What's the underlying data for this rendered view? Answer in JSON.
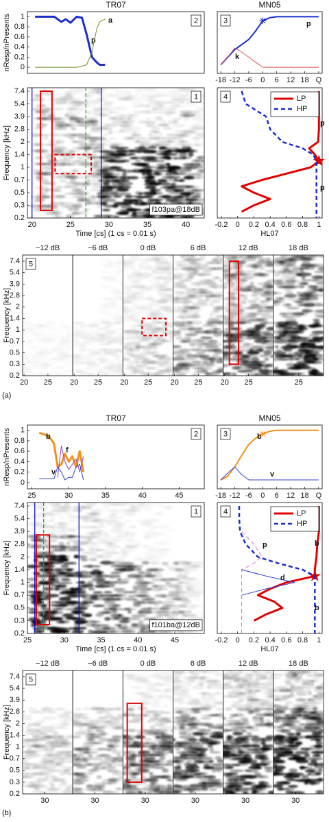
{
  "figure_labels": [
    "(a)",
    "(b)"
  ],
  "chart_data": [
    {
      "type": "line",
      "title": "TR07",
      "ylabel": "nResp/nPresents",
      "panel_label": "2",
      "x": [
        20.4,
        21,
        22,
        22.9,
        23.8,
        24.4,
        25,
        25.8,
        26.5,
        27.1,
        27.8,
        28.4,
        28.8,
        29.5
      ],
      "xlim": [
        19.4,
        42.4
      ],
      "ylim": [
        -0.12,
        1.1
      ],
      "yticks": [
        0,
        0.2,
        0.4,
        0.6,
        0.8,
        1
      ],
      "series": [
        {
          "name": "p",
          "color": "#1a2ecc",
          "width": 3,
          "values": [
            1,
            1,
            1,
            1,
            0.9,
            0.95,
            0.88,
            1,
            0.98,
            0.65,
            0.2,
            0.1,
            0.05,
            0.05
          ]
        },
        {
          "name": "a",
          "color": "#6b8e23",
          "width": 1,
          "values": [
            0,
            0,
            0,
            0,
            0,
            0,
            0,
            0,
            0.02,
            0.05,
            0.3,
            0.75,
            0.9,
            0.95
          ]
        }
      ]
    },
    {
      "type": "line",
      "title": "MN05",
      "panel_label": "3",
      "x": [
        -18,
        -15,
        -12,
        -9,
        -6,
        -3,
        0,
        3,
        6,
        12,
        18,
        24
      ],
      "xlim": [
        -19.5,
        25.5
      ],
      "xticks": [
        -18,
        -12,
        -6,
        0,
        6,
        12,
        18,
        {
          "value": 24,
          "label": "Q"
        }
      ],
      "ylim": [
        -0.12,
        1.1
      ],
      "series": [
        {
          "name": "p",
          "color": "#1a2ecc",
          "width": 2,
          "marker": "asterisk",
          "marker_at": 0,
          "values": [
            0.05,
            0.2,
            0.35,
            0.45,
            0.55,
            0.72,
            0.92,
            0.98,
            1,
            1,
            1,
            1
          ]
        },
        {
          "name": "k",
          "color": "#e05050",
          "width": 1,
          "values": [
            0.05,
            0.2,
            0.38,
            0.3,
            0.2,
            0.1,
            0,
            0,
            0,
            0,
            0,
            0
          ]
        }
      ]
    },
    {
      "type": "spectrogram",
      "panel_label": "1",
      "xlabel": "Time [cs] (1 cs = 0.01 s)",
      "ylabel": "Frequency [kHz]",
      "annotation": "f103pa@18dB",
      "xlim": [
        19.4,
        42.4
      ],
      "xticks": [
        20,
        25,
        30,
        35,
        40
      ],
      "ylim": [
        0.2,
        7.4
      ],
      "yticks": [
        0.2,
        0.3,
        0.5,
        0.7,
        1,
        1.4,
        2,
        2.8,
        3.9,
        5.4,
        7.4
      ],
      "vlines": [
        {
          "x": 20,
          "color": "#0000cc"
        },
        {
          "x": 29,
          "color": "#0000cc"
        },
        {
          "x": 27,
          "color": "#2a9d2a",
          "dash": true
        }
      ],
      "boxes": [
        {
          "x": [
            21.1,
            22.6
          ],
          "y": [
            0.26,
            7.4
          ],
          "color": "#e00000"
        },
        {
          "x": [
            23,
            27.7
          ],
          "y": [
            0.85,
            1.4
          ],
          "color": "#e00000",
          "dash": true
        }
      ]
    },
    {
      "type": "profile",
      "panel_label": "4",
      "xlabel": "HL07",
      "legend": "top-right",
      "annotations": [
        "p",
        "p"
      ],
      "y": [
        7.4,
        5.4,
        3.9,
        2.8,
        2,
        1.7,
        1.4,
        1.2,
        1,
        0.85,
        0.7,
        0.6,
        0.5,
        0.4,
        0.3,
        0.25,
        0.2
      ],
      "xlim": [
        -0.25,
        1.04
      ],
      "xticks": [
        -0.2,
        0,
        0.2,
        0.4,
        0.6,
        0.8,
        1
      ],
      "series": [
        {
          "name": "LP",
          "color": "#e00000",
          "width": 3,
          "marker": "star",
          "marker_at": 1.2,
          "values": [
            1,
            1,
            1,
            1,
            0.99,
            0.88,
            0.95,
            1,
            0.9,
            0.6,
            0.3,
            0.05,
            0.2,
            0.4,
            0.2,
            0.05,
            null
          ]
        },
        {
          "name": "HP",
          "color": "#1a2ecc",
          "width": 2.5,
          "dash": true,
          "values": [
            0.05,
            0.1,
            0.35,
            0.4,
            0.55,
            0.8,
            0.93,
            0.97,
            0.97,
            0.97,
            0.97,
            0.97,
            0.97,
            0.97,
            0.97,
            0.97,
            0.97
          ]
        }
      ]
    },
    {
      "type": "spectrogram-strip",
      "panel_label": "5",
      "ylabel": "Frequency [kHz]",
      "xlim": [
        19.7,
        30.2
      ],
      "ylim": [
        0.2,
        7.4
      ],
      "yticks": [
        0.2,
        0.3,
        0.5,
        0.7,
        1,
        1.4,
        2,
        2.8,
        3.9,
        5.4,
        7.4
      ],
      "panels": [
        {
          "title": "−12 dB",
          "xticks": [
            20,
            25
          ]
        },
        {
          "title": "−6 dB",
          "xticks": [
            20,
            25
          ]
        },
        {
          "title": "0 dB",
          "xticks": [
            20,
            25
          ],
          "boxes": [
            {
              "x": [
                23.7,
                28.7
              ],
              "y": [
                0.85,
                1.4
              ],
              "color": "#e00000",
              "dash": true
            }
          ]
        },
        {
          "title": "6 dB",
          "xticks": [
            20,
            25
          ]
        },
        {
          "title": "12 dB",
          "xticks": [
            20,
            25
          ],
          "boxes": [
            {
              "x": [
                21,
                22.9
              ],
              "y": [
                0.3,
                7.4
              ],
              "color": "#e00000"
            }
          ]
        },
        {
          "title": "18 dB",
          "xticks": [
            25
          ]
        }
      ]
    },
    {
      "type": "line",
      "title": "TR07",
      "ylabel": "nResp/nPresents",
      "panel_label": "2",
      "x": [
        26,
        26.5,
        27,
        27.5,
        28,
        28.5,
        29,
        29.5,
        30,
        30.5,
        31,
        31.5,
        32,
        32.5
      ],
      "xlim": [
        24.4,
        48.4
      ],
      "xticks": [
        25,
        30,
        35,
        40,
        45
      ],
      "ylim": [
        -0.12,
        1.1
      ],
      "yticks": [
        0,
        0.2,
        0.4,
        0.6,
        0.8,
        1
      ],
      "series": [
        {
          "name": "b",
          "color": "#f0901e",
          "width": 3,
          "values": [
            0.95,
            0.93,
            0.9,
            0.85,
            0.75,
            0.3,
            0.35,
            0.55,
            0.4,
            0.5,
            0.3,
            0.6,
            0.2,
            null
          ]
        },
        {
          "name": "f",
          "color": "#9040c0",
          "width": 1,
          "values": [
            null,
            null,
            null,
            null,
            null,
            0.1,
            0.7,
            0.4,
            0.25,
            0.35,
            0.45,
            0.2,
            0.5,
            null
          ]
        },
        {
          "name": "v",
          "color": "#3040d0",
          "width": 1,
          "values": [
            0.07,
            0.07,
            0.07,
            0.07,
            0.07,
            0.3,
            0.2,
            0.05,
            0.1,
            0.1,
            0.3,
            0.35,
            0.05,
            null
          ]
        }
      ]
    },
    {
      "type": "line",
      "title": "MN05",
      "panel_label": "3",
      "x": [
        -18,
        -15,
        -12,
        -9,
        -6,
        -3,
        0,
        3,
        6,
        12,
        18,
        24
      ],
      "xlim": [
        -19.5,
        25.5
      ],
      "xticks": [
        -18,
        -12,
        -6,
        0,
        6,
        12,
        18,
        {
          "value": 24,
          "label": "Q"
        }
      ],
      "ylim": [
        -0.12,
        1.1
      ],
      "series": [
        {
          "name": "b",
          "color": "#f0901e",
          "width": 2,
          "marker": "asterisk",
          "marker_at": 0,
          "values": [
            0.05,
            0.12,
            0.3,
            0.52,
            0.73,
            0.85,
            0.93,
            0.98,
            1,
            1,
            1,
            1
          ]
        },
        {
          "name": "v",
          "color": "#3040d0",
          "width": 1,
          "values": [
            0.05,
            0.18,
            0.3,
            0.15,
            0.05,
            0.05,
            0.05,
            0.05,
            0.05,
            0.05,
            0.05,
            0.05
          ]
        }
      ]
    },
    {
      "type": "spectrogram",
      "panel_label": "1",
      "xlabel": "Time [cs] (1 cs = 0.01 s)",
      "ylabel": "Frequency [kHz]",
      "annotation": "f101ba@12dB",
      "xlim": [
        25,
        49
      ],
      "xticks": [
        25,
        30,
        35,
        40,
        45
      ],
      "ylim": [
        0.2,
        7.4
      ],
      "yticks": [
        0.2,
        0.3,
        0.5,
        0.7,
        1,
        1.4,
        2,
        2.8,
        3.9,
        5.4,
        7.4
      ],
      "vlines": [
        {
          "x": 26,
          "color": "#0000cc"
        },
        {
          "x": 32,
          "color": "#0000cc"
        },
        {
          "x": 27.2,
          "color": "#2a9d2a",
          "dash": true
        }
      ],
      "boxes": [
        {
          "x": [
            26.2,
            28
          ],
          "y": [
            0.27,
            3.6
          ],
          "color": "#e00000"
        }
      ]
    },
    {
      "type": "profile",
      "panel_label": "4",
      "xlabel": "HL07",
      "legend": "top-right",
      "annotations": [
        "b",
        "b"
      ],
      "y": [
        7.4,
        5.4,
        3.9,
        2.8,
        2,
        1.7,
        1.4,
        1.2,
        1,
        0.85,
        0.7,
        0.6,
        0.5,
        0.4,
        0.3,
        0.25,
        0.2
      ],
      "xlim": [
        -0.25,
        1.04
      ],
      "xticks": [
        -0.2,
        0,
        0.2,
        0.4,
        0.6,
        0.8,
        1
      ],
      "series": [
        {
          "name": "LP",
          "color": "#e00000",
          "width": 3,
          "marker": "star",
          "marker_at": 1.2,
          "values": [
            1,
            1,
            1,
            0.98,
            0.97,
            0.96,
            0.95,
            0.95,
            0.6,
            0.4,
            0.25,
            0.45,
            0.55,
            0.35,
            0.2,
            null,
            null
          ]
        },
        {
          "name": "HP",
          "color": "#1a2ecc",
          "width": 2.5,
          "dash": true,
          "values": [
            0.02,
            0.02,
            0.03,
            0.1,
            0.25,
            0.5,
            0.8,
            0.95,
            0.95,
            0.95,
            0.95,
            0.95,
            0.95,
            0.95,
            0.95,
            0.95,
            0.95
          ]
        },
        {
          "name": "p",
          "color": "#d070d0",
          "width": 1,
          "dash": true,
          "legend": false,
          "values": [
            null,
            null,
            0.05,
            0.2,
            0.3,
            0.2,
            0.05,
            0.05,
            0.05,
            0.05,
            0.05,
            0.05,
            0.05,
            0.05,
            0.05,
            0.05,
            0.05
          ]
        },
        {
          "name": "d",
          "color": "#3040d0",
          "width": 1,
          "legend": false,
          "values": [
            null,
            null,
            null,
            null,
            null,
            null,
            0.05,
            0.35,
            0.7,
            0.35,
            0.05,
            null,
            null,
            null,
            null,
            null,
            null
          ]
        }
      ]
    },
    {
      "type": "spectrogram-strip",
      "panel_label": "5",
      "ylabel": "Frequency [kHz]",
      "xlim": [
        25.4,
        35.8
      ],
      "ylim": [
        0.2,
        7.4
      ],
      "yticks": [
        0.2,
        0.3,
        0.5,
        0.7,
        1,
        1.4,
        2,
        2.8,
        3.9,
        5.4,
        7.4
      ],
      "panels": [
        {
          "title": "−12 dB",
          "xticks": [
            30
          ]
        },
        {
          "title": "−6 dB",
          "xticks": [
            30
          ]
        },
        {
          "title": "0 dB",
          "xticks": [
            30
          ],
          "boxes": [
            {
              "x": [
                26.3,
                29.3
              ],
              "y": [
                0.3,
                3.6
              ],
              "color": "#e00000"
            }
          ]
        },
        {
          "title": "6 dB",
          "xticks": [
            30
          ]
        },
        {
          "title": "12 dB",
          "xticks": [
            30
          ]
        },
        {
          "title": "18 dB",
          "xticks": [
            30
          ]
        }
      ]
    }
  ]
}
